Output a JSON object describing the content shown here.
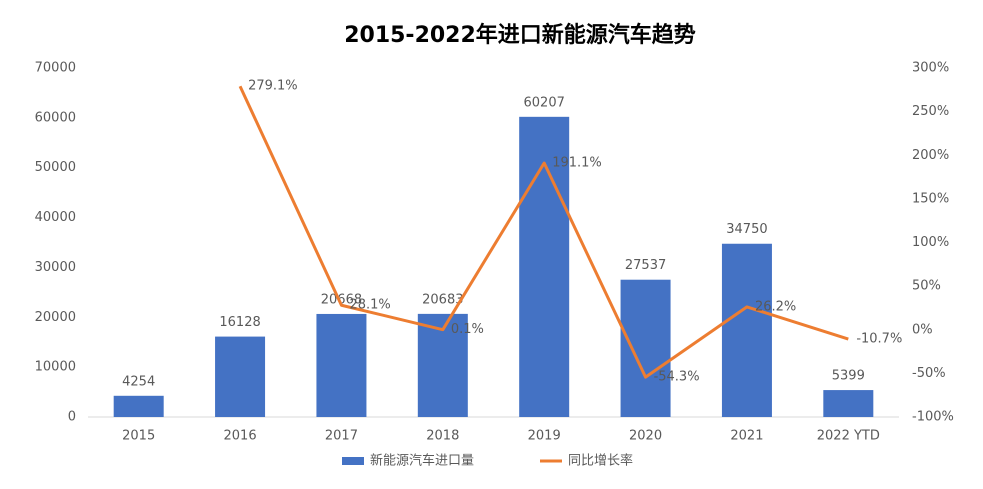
{
  "chart_data": {
    "type": "bar",
    "title": "2015-2022年进口新能源汽车趋势",
    "categories": [
      "2015",
      "2016",
      "2017",
      "2018",
      "2019",
      "2020",
      "2021",
      "2022 YTD"
    ],
    "series": [
      {
        "name": "新能源汽车进口量",
        "type": "bar",
        "color": "#4472c4",
        "axis": "y",
        "values": [
          4254,
          16128,
          20668,
          20683,
          60207,
          27537,
          34750,
          5399
        ]
      },
      {
        "name": "同比增长率",
        "type": "line",
        "color": "#ed7d31",
        "axis": "y2",
        "values": [
          null,
          279.1,
          28.1,
          0.1,
          191.1,
          -54.3,
          26.2,
          -10.7
        ],
        "value_labels": [
          null,
          "279.1%",
          "28.1%",
          "0.1%",
          "191.1%",
          "-54.3%",
          "26.2%",
          "-10.7%"
        ]
      }
    ],
    "ylim": [
      0,
      70000
    ],
    "yticks": [
      0,
      10000,
      20000,
      30000,
      40000,
      50000,
      60000,
      70000
    ],
    "y2lim": [
      -100,
      300
    ],
    "y2ticks": [
      {
        "value": -100,
        "label": "-100%"
      },
      {
        "value": -50,
        "label": "-50%"
      },
      {
        "value": 0,
        "label": "0%"
      },
      {
        "value": 50,
        "label": "50%"
      },
      {
        "value": 100,
        "label": "100%"
      },
      {
        "value": 150,
        "label": "150%"
      },
      {
        "value": 200,
        "label": "200%"
      },
      {
        "value": 250,
        "label": "250%"
      },
      {
        "value": 300,
        "label": "300%"
      }
    ],
    "grid": false,
    "legend": "bottom"
  }
}
